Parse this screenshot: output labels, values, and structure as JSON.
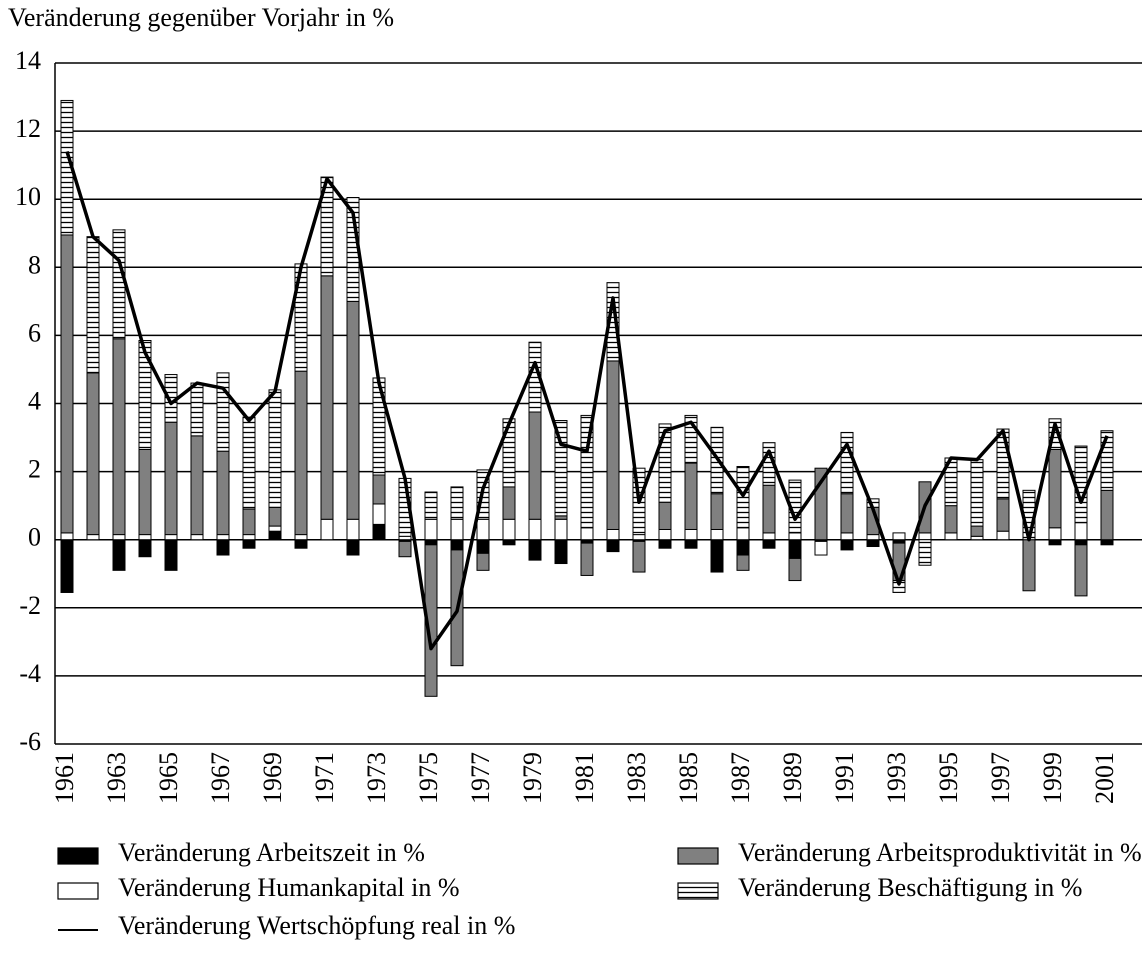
{
  "chart_data": {
    "type": "bar-line",
    "title": "Veränderung gegenüber Vorjahr in %",
    "categories": [
      "1961",
      null,
      "1963",
      null,
      "1965",
      null,
      "1967",
      null,
      "1969",
      null,
      "1971",
      null,
      "1973",
      null,
      "1975",
      null,
      "1977",
      null,
      "1979",
      null,
      "1981",
      null,
      "1983",
      null,
      "1985",
      null,
      "1987",
      null,
      "1989",
      null,
      "1991",
      null,
      "1993",
      null,
      "1995",
      null,
      "1997",
      null,
      "1999",
      null,
      "2001"
    ],
    "stacked": true,
    "series": [
      {
        "name": "Veränderung Arbeitszeit in %",
        "type": "bar",
        "color": "#000000",
        "values": [
          -1.55,
          0,
          -0.9,
          -0.5,
          -0.9,
          0,
          -0.45,
          -0.25,
          0.25,
          -0.25,
          0,
          -0.45,
          0.45,
          -0.05,
          -0.15,
          -0.3,
          -0.4,
          -0.15,
          -0.6,
          -0.7,
          -0.1,
          -0.35,
          -0.05,
          -0.25,
          -0.25,
          -0.95,
          -0.45,
          -0.25,
          -0.55,
          -0.05,
          -0.3,
          -0.2,
          -0.1,
          0,
          0,
          0,
          0,
          0,
          -0.15,
          -0.15,
          -0.15
        ]
      },
      {
        "name": "Veränderung Humankapital in %",
        "type": "bar",
        "color": "#ffffff",
        "values": [
          0.2,
          0.15,
          0.15,
          0.15,
          0.15,
          0.15,
          0.15,
          0.15,
          0.15,
          0.15,
          0.6,
          0.6,
          0.6,
          0.1,
          0.6,
          0.6,
          0.6,
          0.6,
          0.6,
          0.6,
          0.35,
          0.3,
          0.15,
          0.3,
          0.3,
          0.3,
          0.35,
          0.2,
          0.2,
          -0.4,
          0.2,
          0.15,
          0.2,
          0.2,
          0.2,
          0.1,
          0.25,
          0,
          0.35,
          0.5,
          0
        ]
      },
      {
        "name": "Veränderung Arbeitsproduktivität in %",
        "type": "bar",
        "color": "#808080",
        "values": [
          8.75,
          4.75,
          5.75,
          2.5,
          3.3,
          2.9,
          2.45,
          0.75,
          0.55,
          4.8,
          7.15,
          6.4,
          0.85,
          -0.45,
          -4.45,
          -3.4,
          -0.5,
          0.95,
          3.15,
          0.1,
          -0.95,
          4.95,
          -0.9,
          0.8,
          1.95,
          1.05,
          -0.45,
          1.4,
          -0.65,
          2.1,
          1.15,
          0.8,
          -1.1,
          1.5,
          0.8,
          0.3,
          0.95,
          -1.5,
          2.3,
          -1.5,
          1.45
        ]
      },
      {
        "name": "Veränderung Beschäftigung in %",
        "type": "bar",
        "color": "#ffffff",
        "pattern": "horizontal-lines",
        "values": [
          3.95,
          4.0,
          3.2,
          3.2,
          1.4,
          1.55,
          2.3,
          2.7,
          3.45,
          3.15,
          2.9,
          3.05,
          2.85,
          1.7,
          0.8,
          0.95,
          1.45,
          2.0,
          2.05,
          2.8,
          3.3,
          2.3,
          1.95,
          2.3,
          1.4,
          1.95,
          1.8,
          1.25,
          1.55,
          0,
          1.8,
          0.25,
          -0.35,
          -0.75,
          1.4,
          1.95,
          2.05,
          1.45,
          0.9,
          2.25,
          1.75
        ]
      },
      {
        "name": "Veränderung Wertschöpfung real in %",
        "type": "line",
        "color": "#000000",
        "values": [
          11.4,
          8.9,
          8.2,
          5.5,
          4.0,
          4.6,
          4.45,
          3.5,
          4.35,
          8.0,
          10.6,
          9.6,
          4.6,
          1.8,
          -3.2,
          -2.1,
          1.5,
          3.4,
          5.2,
          2.8,
          2.6,
          7.1,
          1.1,
          3.2,
          3.45,
          2.4,
          1.3,
          2.6,
          0.6,
          1.7,
          2.8,
          0.9,
          -1.3,
          1.0,
          2.4,
          2.35,
          3.2,
          0,
          3.4,
          1.1,
          3.05
        ]
      }
    ],
    "legend_order": [
      0,
      1,
      4,
      2,
      3
    ],
    "ylim": [
      -6,
      14
    ],
    "yticks": [
      -6,
      -4,
      -2,
      0,
      2,
      4,
      6,
      8,
      10,
      12,
      14
    ],
    "grid": true
  }
}
